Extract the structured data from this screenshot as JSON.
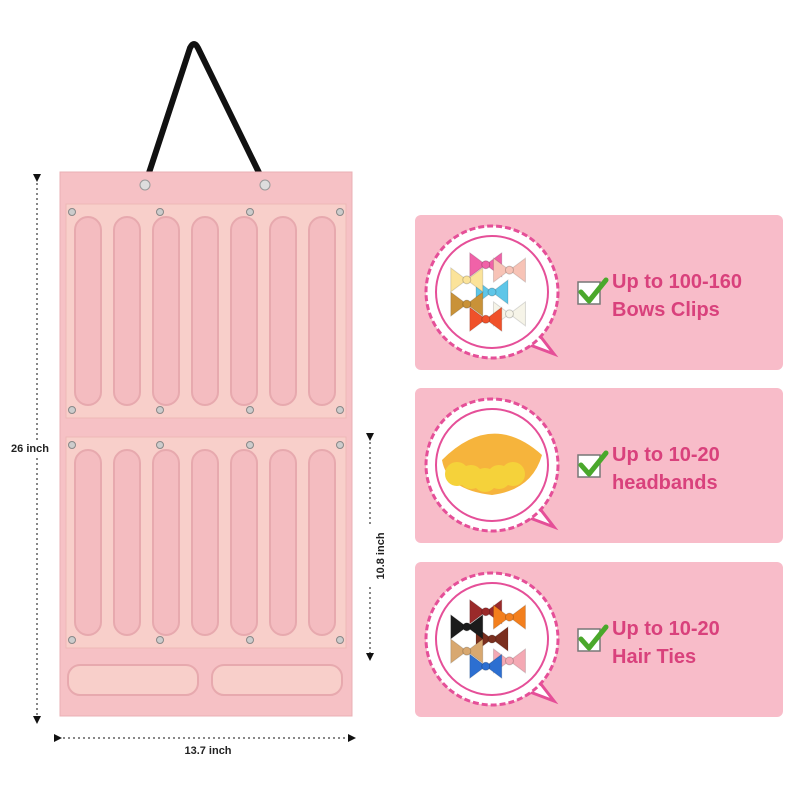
{
  "dimensions": {
    "height": "26 inch",
    "pocket_height": "10.8 inch",
    "width": "13.7 inch"
  },
  "cards": [
    {
      "line1": "Up to 100-160",
      "line2": "Bows Clips"
    },
    {
      "line1": "Up to 10-20",
      "line2": "headbands"
    },
    {
      "line1": "Up to 10-20",
      "line2": "Hair Ties"
    }
  ]
}
